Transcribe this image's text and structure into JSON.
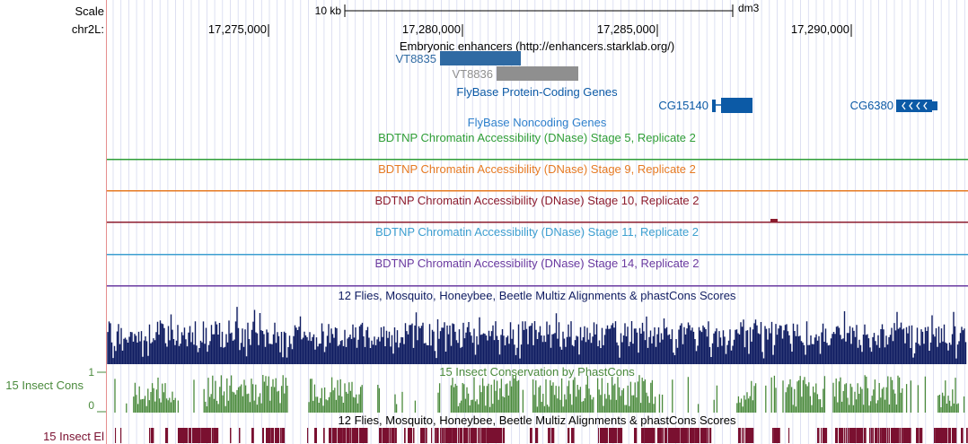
{
  "ruler": {
    "scale_label": "Scale",
    "chrom_label": "chr2L:",
    "scale_bar_text": "10 kb",
    "assembly": "dm3",
    "ticks": [
      "17,275,000",
      "17,280,000",
      "17,285,000",
      "17,290,000"
    ]
  },
  "tracks": {
    "enhancers": {
      "title": "Embryonic enhancers (http://enhancers.starklab.org/)",
      "items": [
        {
          "name": "VT8835",
          "color": "#2f6aa3"
        },
        {
          "name": "VT8836",
          "color": "#8f8f8f"
        }
      ]
    },
    "flybase_coding": {
      "title": "FlyBase Protein-Coding Genes",
      "genes": [
        {
          "name": "CG15140",
          "strand": "+"
        },
        {
          "name": "CG6380",
          "strand": "-"
        }
      ]
    },
    "flybase_noncoding": {
      "title": "FlyBase Noncoding Genes"
    },
    "dnase": [
      {
        "title": "BDTNP Chromatin Accessibility (DNase) Stage 5, Replicate 2",
        "color": "#2f9e37"
      },
      {
        "title": "BDTNP Chromatin Accessibility (DNase) Stage 9, Replicate 2",
        "color": "#e67a22"
      },
      {
        "title": "BDTNP Chromatin Accessibility (DNase) Stage 10, Replicate 2",
        "color": "#8c1c2e"
      },
      {
        "title": "BDTNP Chromatin Accessibility (DNase) Stage 11, Replicate 2",
        "color": "#3d9fd0"
      },
      {
        "title": "BDTNP Chromatin Accessibility (DNase) Stage 14, Replicate 2",
        "color": "#6a3aa0"
      }
    ],
    "multiz": {
      "title": "12 Flies, Mosquito, Honeybee, Beetle Multiz Alignments & phastCons Scores",
      "color": "#101d62"
    },
    "phastcons": {
      "title": "15 Insect Conservation by PhastCons",
      "side_label": "15 Insect Cons",
      "axis_max": "1",
      "axis_min": "0",
      "color": "#4a8a3c"
    },
    "elements": {
      "title": "12 Flies, Mosquito, Honeybee, Beetle Multiz Alignments & phastCons Scores",
      "side_label": "15 Insect El",
      "color": "#7a1030"
    }
  },
  "colors": {
    "title_dark": "#101d62",
    "gene_blue": "#0c5aa6",
    "noncoding_blue": "#2f80cc",
    "side_red": "#e58e8e",
    "grid": "#d6d9ef"
  }
}
